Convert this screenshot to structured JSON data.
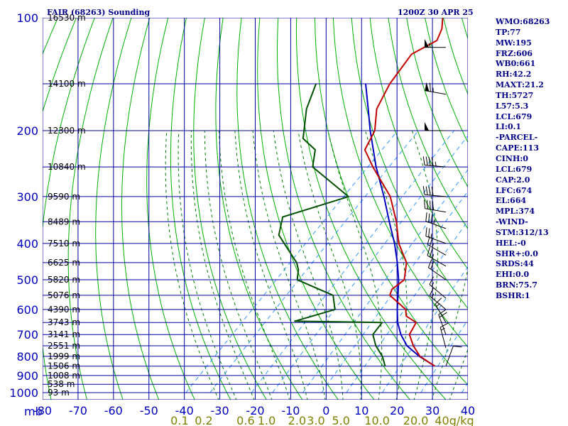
{
  "header": {
    "title": "FAIR (68263) Sounding",
    "time": "1200Z 30 APR 25"
  },
  "stats": [
    "WMO:68263",
    "TP:77",
    "MW:195",
    "FRZ:606",
    "WB0:661",
    "RH:42.2",
    "MAXT:21.2",
    "TH:5727",
    "L57:5.3",
    "LCL:679",
    "LI:0.1",
    "-PARCEL-",
    "CAPE:113",
    "CINH:0",
    "LCL:679",
    "CAP:2.0",
    "LFC:674",
    "EL:664",
    "MPL:374",
    "-WIND-",
    "STM:312/13",
    "HEL:-0",
    "SHR+:0.0",
    "SRDS:44",
    "EHI:0.0",
    "BRN:75.7",
    "BSHR:1"
  ],
  "colors": {
    "grid": "#0000a0",
    "dry_adiabat": "#00b000",
    "moist_adiabat": "#008000",
    "mixing_ratio": "#3399ff",
    "temperature": "#c00000",
    "dewpoint": "#005000",
    "parcel": "#0000c0",
    "wind_barb": "#000000",
    "axis_label": "#0000c0",
    "mixing_label": "#808000"
  },
  "chart_data": {
    "type": "skew-t",
    "title": "FAIR (68263) Sounding",
    "y_axis": {
      "label": "mb",
      "scale": "log",
      "ticks": [
        100,
        200,
        300,
        400,
        500,
        600,
        700,
        800,
        900,
        1000
      ]
    },
    "x_axis": {
      "unit": "C",
      "ticks": [
        -80,
        -70,
        -60,
        -50,
        -40,
        -30,
        -20,
        -10,
        0,
        10,
        20,
        30,
        40
      ],
      "labels": [
        "-80",
        "-70",
        "-60",
        "-50",
        "-40",
        "-30",
        "-20",
        "-10",
        "0",
        "10",
        "20",
        "30",
        "40"
      ]
    },
    "mixing_ratio_labels": [
      "0.1",
      "0.2",
      "0.6",
      "1.0",
      "2.0",
      "3.0",
      "5.0",
      "10.0",
      "20.0",
      "40g/kg"
    ],
    "mixing_ratio_values": [
      0.1,
      0.2,
      0.6,
      1.0,
      2.0,
      3.0,
      5.0,
      10.0,
      20.0,
      40.0
    ],
    "height_labels": [
      {
        "p": 100,
        "text": "16530 m"
      },
      {
        "p": 150,
        "text": "14100 m"
      },
      {
        "p": 200,
        "text": "12300 m"
      },
      {
        "p": 250,
        "text": "10840 m"
      },
      {
        "p": 300,
        "text": "9590 m"
      },
      {
        "p": 350,
        "text": "8489 m"
      },
      {
        "p": 400,
        "text": "7510 m"
      },
      {
        "p": 450,
        "text": "6625 m"
      },
      {
        "p": 500,
        "text": "5820 m"
      },
      {
        "p": 550,
        "text": "5076 m"
      },
      {
        "p": 600,
        "text": "4390 m"
      },
      {
        "p": 650,
        "text": "3743 m"
      },
      {
        "p": 700,
        "text": "3141 m"
      },
      {
        "p": 750,
        "text": "2551 m"
      },
      {
        "p": 800,
        "text": "1999 m"
      },
      {
        "p": 850,
        "text": "1506 m"
      },
      {
        "p": 900,
        "text": "1008 m"
      },
      {
        "p": 950,
        "text": "538 m"
      },
      {
        "p": 1000,
        "text": "93 m"
      }
    ],
    "temperature": [
      {
        "p": 850,
        "t": 21.2
      },
      {
        "p": 800,
        "t": 14.2
      },
      {
        "p": 750,
        "t": 9.4
      },
      {
        "p": 700,
        "t": 5.1
      },
      {
        "p": 650,
        "t": 3.6
      },
      {
        "p": 625,
        "t": -1.0
      },
      {
        "p": 600,
        "t": -3.0
      },
      {
        "p": 550,
        "t": -11.5
      },
      {
        "p": 530,
        "t": -12.6
      },
      {
        "p": 500,
        "t": -11.8
      },
      {
        "p": 450,
        "t": -16.0
      },
      {
        "p": 400,
        "t": -23.6
      },
      {
        "p": 350,
        "t": -30.4
      },
      {
        "p": 300,
        "t": -39.2
      },
      {
        "p": 250,
        "t": -52.5
      },
      {
        "p": 225,
        "t": -59.6
      },
      {
        "p": 200,
        "t": -62.2
      },
      {
        "p": 175,
        "t": -67.8
      },
      {
        "p": 150,
        "t": -71.2
      },
      {
        "p": 125,
        "t": -73.4
      },
      {
        "p": 115,
        "t": -70.1
      },
      {
        "p": 107,
        "t": -72.0
      },
      {
        "p": 100,
        "t": -74.9
      }
    ],
    "dewpoint": [
      {
        "p": 850,
        "t": 7.2
      },
      {
        "p": 800,
        "t": 3.6
      },
      {
        "p": 750,
        "t": -1.2
      },
      {
        "p": 700,
        "t": -5.2
      },
      {
        "p": 650,
        "t": -6.0
      },
      {
        "p": 645,
        "t": -31.0
      },
      {
        "p": 600,
        "t": -23.0
      },
      {
        "p": 550,
        "t": -27.5
      },
      {
        "p": 500,
        "t": -42.0
      },
      {
        "p": 470,
        "t": -44.5
      },
      {
        "p": 450,
        "t": -47.0
      },
      {
        "p": 380,
        "t": -59.8
      },
      {
        "p": 340,
        "t": -63.8
      },
      {
        "p": 300,
        "t": -51.0
      },
      {
        "p": 250,
        "t": -69.5
      },
      {
        "p": 225,
        "t": -73.6
      },
      {
        "p": 210,
        "t": -80.2
      },
      {
        "p": 175,
        "t": -87.6
      },
      {
        "p": 150,
        "t": -92.0
      }
    ],
    "parcel": [
      {
        "p": 850,
        "t": 21.2
      },
      {
        "p": 800,
        "t": 14.0
      },
      {
        "p": 750,
        "t": 7.6
      },
      {
        "p": 700,
        "t": 2.7
      },
      {
        "p": 650,
        "t": -1.6
      },
      {
        "p": 600,
        "t": -5.4
      },
      {
        "p": 550,
        "t": -9.2
      },
      {
        "p": 500,
        "t": -13.4
      },
      {
        "p": 450,
        "t": -18.6
      },
      {
        "p": 400,
        "t": -24.8
      },
      {
        "p": 350,
        "t": -32.4
      },
      {
        "p": 300,
        "t": -41.0
      },
      {
        "p": 250,
        "t": -51.6
      },
      {
        "p": 200,
        "t": -63.5
      },
      {
        "p": 175,
        "t": -70.2
      },
      {
        "p": 150,
        "t": -78.0
      }
    ],
    "wind_barbs": [
      {
        "p": 120,
        "dir": 270,
        "speed": 55
      },
      {
        "p": 160,
        "dir": 280,
        "speed": 65
      },
      {
        "p": 200,
        "dir": 270,
        "speed": 50
      },
      {
        "p": 250,
        "dir": 275,
        "speed": 45
      },
      {
        "p": 300,
        "dir": 275,
        "speed": 40
      },
      {
        "p": 330,
        "dir": 280,
        "speed": 40
      },
      {
        "p": 365,
        "dir": 290,
        "speed": 35
      },
      {
        "p": 400,
        "dir": 290,
        "speed": 25
      },
      {
        "p": 430,
        "dir": 300,
        "speed": 25
      },
      {
        "p": 460,
        "dir": 300,
        "speed": 25
      },
      {
        "p": 500,
        "dir": 305,
        "speed": 20
      },
      {
        "p": 560,
        "dir": 310,
        "speed": 15
      },
      {
        "p": 600,
        "dir": 310,
        "speed": 15
      },
      {
        "p": 650,
        "dir": 330,
        "speed": 15
      },
      {
        "p": 700,
        "dir": 340,
        "speed": 20
      },
      {
        "p": 760,
        "dir": 345,
        "speed": 15
      },
      {
        "p": 850,
        "dir": 20,
        "speed": 10
      }
    ]
  }
}
